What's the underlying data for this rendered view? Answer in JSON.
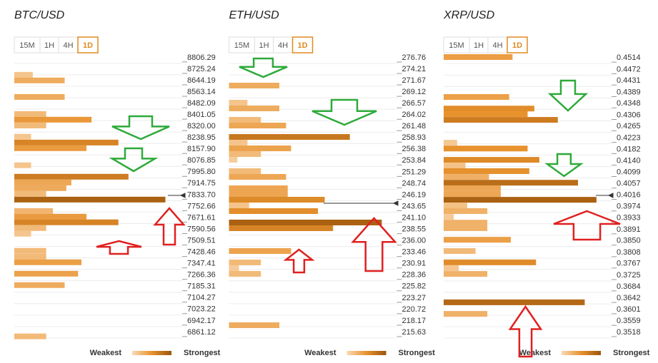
{
  "chart_data": [
    {
      "type": "confluence",
      "title": "BTC/USD",
      "timeframes": [
        "15M",
        "1H",
        "4H",
        "1D"
      ],
      "legend": [
        "Weakest",
        "Strongest"
      ],
      "ylim": [
        6800,
        8846
      ],
      "xlim": [
        0,
        100
      ],
      "yticks": [
        8806.29,
        8725.24,
        8644.19,
        8563.14,
        8482.09,
        8401.05,
        {
          "value": 8320.0,
          "label": "8320.00"
        },
        8238.95,
        {
          "value": 8157.9,
          "label": "8157.90"
        },
        8076.85,
        {
          "value": 7995.8,
          "label": "7995.80"
        },
        7914.75,
        {
          "value": 7833.7,
          "label": "7833.70"
        },
        7752.66,
        7671.61,
        7590.56,
        7509.51,
        7428.46,
        7347.41,
        7266.36,
        7185.31,
        7104.27,
        7023.22,
        6942.17,
        6861.12
      ],
      "levels": [
        8685,
        8645,
        8528,
        8407,
        8367,
        8326,
        8246,
        8205,
        8165,
        8044,
        7963,
        7922,
        7882,
        7842,
        7801,
        7720,
        7680,
        7640,
        7599,
        7559,
        7438,
        7397,
        7357,
        7276,
        7195,
        6832
      ],
      "values": [
        11,
        30,
        30,
        19,
        46,
        19,
        10,
        62,
        43,
        10,
        68,
        34,
        31,
        19,
        90,
        23,
        43,
        62,
        19,
        10,
        19,
        19,
        40,
        38,
        30,
        19
      ]
    },
    {
      "type": "confluence",
      "title": "ETH/USD",
      "timeframes": [
        "15M",
        "1H",
        "4H",
        "1D"
      ],
      "legend": [
        "Weakest",
        "Strongest"
      ],
      "ylim": [
        213.72,
        278.03
      ],
      "xlim": [
        0,
        100
      ],
      "yticks": [
        276.76,
        274.21,
        271.67,
        269.12,
        266.57,
        264.02,
        261.48,
        258.93,
        256.38,
        253.84,
        251.29,
        248.74,
        246.19,
        243.65,
        {
          "value": 241.1,
          "label": "241.10"
        },
        238.55,
        {
          "value": 236.0,
          "label": "236.00"
        },
        233.46,
        230.91,
        228.36,
        225.82,
        223.27,
        220.72,
        218.17,
        215.63
      ],
      "levels": [
        270.57,
        266.76,
        265.49,
        262.94,
        261.67,
        259.13,
        257.86,
        256.59,
        255.32,
        254.05,
        251.51,
        250.24,
        247.7,
        246.43,
        245.16,
        243.89,
        242.62,
        240.08,
        238.81,
        233.73,
        231.19,
        229.92,
        228.65,
        217.21
      ],
      "values": [
        30,
        11,
        30,
        19,
        34,
        72,
        11,
        37,
        19,
        5,
        19,
        34,
        35,
        35,
        57,
        12,
        53,
        91,
        62,
        37,
        19,
        6,
        19,
        30
      ]
    },
    {
      "type": "confluence",
      "title": "XRP/USD",
      "timeframes": [
        "15M",
        "1H",
        "4H",
        "1D"
      ],
      "legend": [
        "Weakest",
        "Strongest"
      ],
      "ylim": [
        0.3487,
        0.4535
      ],
      "xlim": [
        0,
        100
      ],
      "yticks": [
        0.4514,
        0.4472,
        0.4431,
        0.4389,
        0.4348,
        0.4306,
        0.4265,
        0.4223,
        0.4182,
        {
          "value": 0.414,
          "label": "0.4140"
        },
        0.4099,
        0.4057,
        0.4016,
        0.3974,
        0.3933,
        0.3891,
        {
          "value": 0.385,
          "label": "0.3850"
        },
        0.3808,
        0.3767,
        0.3725,
        0.3684,
        0.3642,
        0.3601,
        0.3559,
        0.3518
      ],
      "levels": [
        0.4517,
        0.4372,
        0.433,
        0.431,
        0.4289,
        0.4206,
        0.4185,
        0.4144,
        0.4123,
        0.4103,
        0.4082,
        0.4061,
        0.4041,
        0.402,
        0.3999,
        0.3978,
        0.3958,
        0.3937,
        0.3916,
        0.3896,
        0.3854,
        0.3813,
        0.3772,
        0.3751,
        0.373,
        0.3627,
        0.3585
      ],
      "values": [
        41,
        39,
        54,
        50,
        68,
        8,
        50,
        57,
        13,
        51,
        27,
        80,
        34,
        34,
        91,
        14,
        26,
        6,
        26,
        26,
        40,
        19,
        55,
        9,
        26,
        84,
        26
      ]
    }
  ]
}
